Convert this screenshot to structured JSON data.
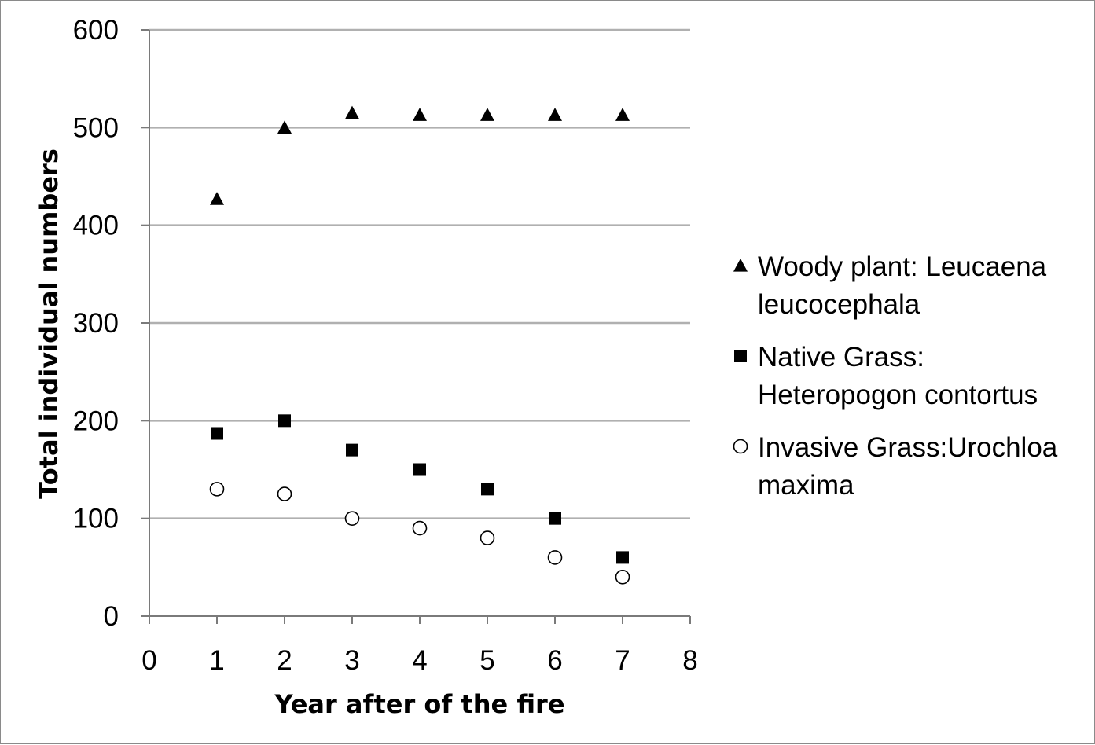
{
  "chart_data": {
    "type": "scatter",
    "title": "",
    "xlabel": "Year after of the fire",
    "ylabel": "Total individual numbers",
    "xlim": [
      0,
      8
    ],
    "ylim": [
      0,
      600
    ],
    "x_ticks": [
      0,
      1,
      2,
      3,
      4,
      5,
      6,
      7,
      8
    ],
    "y_ticks": [
      0,
      100,
      200,
      300,
      400,
      500,
      600
    ],
    "grid": "horizontal",
    "legend_position": "right",
    "series": [
      {
        "name": "Woody plant: Leucaena leucocephala",
        "legend_lines": [
          "Woody plant: Leucaena",
          "leucocephala"
        ],
        "marker": "triangle",
        "color": "#000000",
        "x": [
          1,
          2,
          3,
          4,
          5,
          6,
          7
        ],
        "y": [
          427,
          500,
          515,
          513,
          513,
          513,
          513
        ]
      },
      {
        "name": "Native Grass: Heteropogon contortus",
        "legend_lines": [
          "Native Grass:",
          "Heteropogon contortus"
        ],
        "marker": "square",
        "color": "#000000",
        "x": [
          1,
          2,
          3,
          4,
          5,
          6,
          7
        ],
        "y": [
          187,
          200,
          170,
          150,
          130,
          100,
          60
        ]
      },
      {
        "name": "Invasive Grass:Urochloa maxima",
        "legend_lines": [
          "Invasive Grass:Urochloa",
          "maxima"
        ],
        "marker": "circle-open",
        "color": "#000000",
        "x": [
          1,
          2,
          3,
          4,
          5,
          6,
          7
        ],
        "y": [
          130,
          125,
          100,
          90,
          80,
          60,
          40
        ]
      }
    ]
  }
}
